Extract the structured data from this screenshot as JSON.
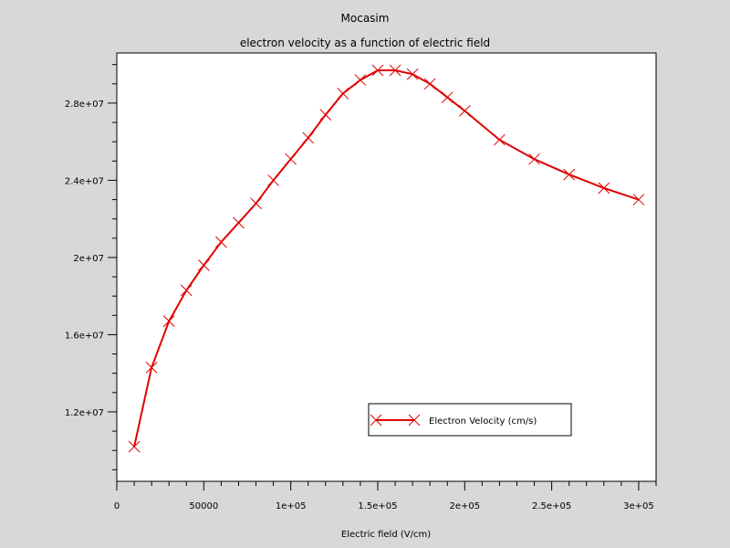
{
  "chart_data": {
    "type": "line",
    "title": "Mocasim",
    "subtitle": "electron velocity as a function of electric field",
    "xlabel": "Electric field (V/cm)",
    "ylabel": "",
    "xlim": [
      0,
      310000
    ],
    "ylim": [
      8400000,
      30600000
    ],
    "x_ticks": [
      0,
      50000,
      100000,
      150000,
      200000,
      250000,
      300000
    ],
    "x_tick_labels": [
      "0",
      "50000",
      "1e+05",
      "1.5e+05",
      "2e+05",
      "2.5e+05",
      "3e+05"
    ],
    "y_ticks": [
      12000000,
      16000000,
      20000000,
      24000000,
      28000000
    ],
    "y_tick_labels": [
      "1.2e+07",
      "1.6e+07",
      "2e+07",
      "2.4e+07",
      "2.8e+07"
    ],
    "grid": false,
    "legend_position": "lower-right",
    "series": [
      {
        "name": "Electron Velocity (cm/s)",
        "color": "#e00000",
        "marker": "x",
        "points": [
          [
            10000,
            10200000
          ],
          [
            20000,
            14300000
          ],
          [
            30000,
            16700000
          ],
          [
            40000,
            18300000
          ],
          [
            50000,
            19600000
          ],
          [
            60000,
            20800000
          ],
          [
            70000,
            21800000
          ],
          [
            80000,
            22800000
          ],
          [
            90000,
            24000000
          ],
          [
            100000,
            25100000
          ],
          [
            110000,
            26200000
          ],
          [
            120000,
            27400000
          ],
          [
            130000,
            28500000
          ],
          [
            140000,
            29200000
          ],
          [
            150000,
            29700000
          ],
          [
            160000,
            29700000
          ],
          [
            170000,
            29500000
          ],
          [
            180000,
            29000000
          ],
          [
            190000,
            28300000
          ],
          [
            200000,
            27600000
          ],
          [
            220000,
            26100000
          ],
          [
            240000,
            25100000
          ],
          [
            260000,
            24300000
          ],
          [
            280000,
            23600000
          ],
          [
            300000,
            23000000
          ]
        ]
      }
    ]
  }
}
